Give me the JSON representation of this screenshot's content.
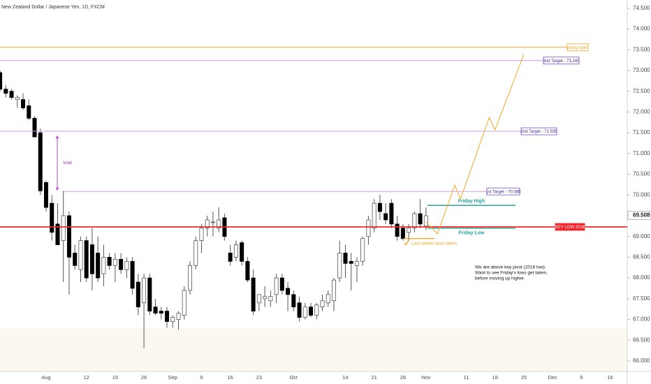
{
  "chart_data": {
    "type": "candlestick",
    "title": "New Zealand Dollar / Japanese Yen, 1D, FXCM",
    "categories": [
      null,
      null,
      null,
      null,
      null,
      null,
      null,
      null,
      "Aug",
      null,
      null,
      null,
      null,
      null,
      null,
      "12",
      null,
      null,
      null,
      null,
      "19",
      null,
      null,
      null,
      null,
      "26",
      null,
      null,
      null,
      null,
      "Sep",
      null,
      null,
      null,
      null,
      "9",
      null,
      null,
      null,
      null,
      "16",
      null,
      null,
      null,
      null,
      "23",
      null,
      null,
      null,
      null,
      null,
      "Oct",
      null,
      null,
      null,
      null,
      null,
      null,
      null,
      null,
      "14",
      null,
      null,
      null,
      null,
      "21",
      null,
      null,
      null,
      null,
      "28",
      null,
      null,
      null,
      "Nov",
      null,
      null,
      null,
      null,
      null,
      null,
      "11",
      null,
      null,
      null,
      null,
      "18",
      null,
      null,
      null,
      null,
      "25",
      null,
      null,
      null,
      null,
      "Dec",
      null,
      null,
      null,
      null,
      "9",
      null,
      null,
      null,
      null,
      "16",
      null,
      null
    ],
    "open": [
      72.95,
      72.55,
      72.5,
      72.3,
      72.3,
      72.15,
      71.85,
      71.5,
      70.3,
      69.8,
      69.3,
      68.9,
      69.5,
      68.6,
      68.2,
      68.9,
      68.8,
      68.6,
      68.1,
      68.5,
      68.3,
      68.45,
      68.2,
      68.4,
      67.9,
      67.4,
      68.0,
      67.3,
      67.2,
      67.2,
      66.95,
      67.0,
      67.1,
      67.7,
      68.3,
      68.9,
      69.2,
      69.35,
      69.2,
      69.45,
      68.6,
      68.5,
      68.85,
      68.4,
      68.0,
      67.4,
      67.5,
      67.45,
      67.6,
      68.0,
      67.75,
      67.6,
      67.4,
      67.05,
      67.3,
      67.1,
      67.3,
      67.4,
      67.45,
      68.0,
      68.6,
      68.4,
      68.3,
      68.4,
      69.0,
      69.2,
      69.8,
      69.55,
      69.8,
      69.3,
      69.2,
      69.1,
      69.2,
      69.55,
      69.25,
      null,
      null,
      null,
      null,
      null,
      null,
      null,
      null,
      null,
      null,
      null,
      null,
      null,
      null,
      null,
      null,
      null,
      null,
      null,
      null,
      null,
      null,
      null,
      null,
      null,
      null,
      null,
      null,
      null,
      null,
      null,
      null,
      null,
      null
    ],
    "high": [
      73.0,
      72.65,
      72.55,
      72.4,
      72.45,
      72.3,
      71.9,
      71.6,
      70.35,
      70.0,
      69.8,
      70.1,
      69.6,
      68.8,
      69.0,
      69.0,
      69.2,
      69.0,
      68.8,
      68.6,
      68.6,
      68.6,
      68.5,
      68.5,
      68.1,
      68.1,
      68.1,
      67.5,
      67.3,
      67.3,
      67.1,
      67.2,
      67.8,
      68.4,
      69.0,
      69.3,
      69.5,
      69.6,
      69.7,
      69.55,
      68.8,
      68.9,
      68.9,
      68.5,
      68.2,
      67.6,
      67.8,
      67.7,
      68.1,
      68.1,
      67.9,
      67.7,
      67.55,
      67.4,
      67.4,
      67.4,
      67.6,
      67.7,
      68.0,
      68.9,
      68.8,
      68.6,
      68.5,
      69.0,
      69.5,
      69.9,
      70.0,
      69.8,
      69.9,
      69.5,
      69.3,
      69.3,
      69.6,
      69.9,
      69.7,
      null,
      null,
      null,
      null,
      null,
      null,
      null,
      null,
      null,
      null,
      null,
      null,
      null,
      null,
      null,
      null,
      null,
      null,
      null,
      null,
      null,
      null,
      null,
      null,
      null,
      null,
      null,
      null,
      null,
      null,
      null,
      null,
      null,
      null
    ],
    "low": [
      72.5,
      72.35,
      72.3,
      72.1,
      72.05,
      71.8,
      71.4,
      70.0,
      69.6,
      68.9,
      68.8,
      67.9,
      67.6,
      68.2,
      67.9,
      67.9,
      67.7,
      67.9,
      67.8,
      68.2,
      67.9,
      68.1,
      68.0,
      67.6,
      67.1,
      66.3,
      67.1,
      67.1,
      67.0,
      66.8,
      66.8,
      66.75,
      67.0,
      67.6,
      68.2,
      68.6,
      69.0,
      69.0,
      69.1,
      68.9,
      68.3,
      68.4,
      68.3,
      67.9,
      67.1,
      67.2,
      67.3,
      67.3,
      67.4,
      67.6,
      67.2,
      67.2,
      66.95,
      67.0,
      67.05,
      67.0,
      67.2,
      67.3,
      67.2,
      67.9,
      68.0,
      67.7,
      67.9,
      68.3,
      68.8,
      69.1,
      69.4,
      69.3,
      69.2,
      68.9,
      68.9,
      68.9,
      69.1,
      69.2,
      69.15,
      null,
      null,
      null,
      null,
      null,
      null,
      null,
      null,
      null,
      null,
      null,
      null,
      null,
      null,
      null,
      null,
      null,
      null,
      null,
      null,
      null,
      null,
      null,
      null,
      null,
      null,
      null,
      null,
      null,
      null,
      null,
      null,
      null,
      null
    ],
    "close": [
      72.55,
      72.45,
      72.35,
      72.35,
      72.1,
      71.85,
      71.4,
      70.1,
      69.7,
      69.1,
      68.8,
      69.5,
      68.5,
      68.3,
      68.9,
      68.0,
      68.1,
      68.0,
      68.5,
      68.3,
      68.45,
      68.2,
      68.4,
      67.75,
      67.3,
      68.0,
      67.2,
      67.15,
      67.15,
      66.95,
      67.05,
      67.15,
      67.7,
      68.3,
      68.9,
      69.2,
      69.4,
      69.35,
      69.4,
      69.0,
      68.4,
      68.8,
      68.4,
      67.95,
      67.2,
      67.6,
      67.55,
      67.55,
      68.0,
      67.7,
      67.6,
      67.3,
      67.05,
      67.3,
      67.1,
      67.35,
      67.45,
      67.6,
      67.95,
      68.6,
      68.35,
      68.35,
      68.4,
      68.95,
      69.4,
      69.8,
      69.6,
      69.4,
      69.3,
      69.0,
      68.95,
      69.2,
      69.55,
      69.3,
      69.5,
      null,
      null,
      null,
      null,
      null,
      null,
      null,
      null,
      null,
      null,
      null,
      null,
      null,
      null,
      null,
      null,
      null,
      null,
      null,
      null,
      null,
      null,
      null,
      null,
      null,
      null,
      null,
      null,
      null,
      null,
      null,
      null,
      null,
      null
    ],
    "up_color": "#ffffff",
    "down_color": "#000000",
    "ylim": [
      65.78,
      74.7
    ],
    "yticks": [
      {
        "value": 66,
        "label": "66.000"
      },
      {
        "value": 66.5,
        "label": "66.500"
      },
      {
        "value": 67,
        "label": "67.000"
      },
      {
        "value": 67.5,
        "label": "67.500"
      },
      {
        "value": 68,
        "label": "68.000"
      },
      {
        "value": 68.5,
        "label": "68.500"
      },
      {
        "value": 69,
        "label": "69.000"
      },
      {
        "value": 69.5,
        "label": "69.500"
      },
      {
        "value": 70,
        "label": "70.000"
      },
      {
        "value": 70.5,
        "label": "70.500"
      },
      {
        "value": 71,
        "label": "71.000"
      },
      {
        "value": 71.5,
        "label": "71.500"
      },
      {
        "value": 72,
        "label": "72.000"
      },
      {
        "value": 72.5,
        "label": "72.500"
      },
      {
        "value": 73,
        "label": "73.000"
      },
      {
        "value": 73.5,
        "label": "73.500"
      },
      {
        "value": 74,
        "label": "74.000"
      },
      {
        "value": 74.5,
        "label": "74.500"
      }
    ],
    "last_price": 69.508,
    "levels": [
      {
        "label": "yearly open",
        "value": 73.56,
        "color": "#f5a623"
      },
      {
        "label": "3nd Target - 73.240",
        "value": 73.24,
        "color": "#d49be6"
      },
      {
        "label": "2nd Target - 71.535",
        "value": 71.535,
        "color": "#d49be6"
      },
      {
        "label": "1st Target - 70.085",
        "value": 70.085,
        "color": "#d49be6"
      },
      {
        "label": "KEY LOW 2016",
        "value": 69.23,
        "color": "#f2262a"
      },
      {
        "label": "Friday High",
        "value": 69.75,
        "color": "#26a69a"
      },
      {
        "label": "Friday Low",
        "value": 69.2,
        "color": "#26a69a"
      },
      {
        "label": "Last weeks lows taken.",
        "value": 68.95,
        "color": "#f5a623"
      }
    ],
    "projection": {
      "color": "#f5a623",
      "x": [
        74,
        76,
        79,
        80,
        85,
        86,
        91
      ],
      "values": [
        69.35,
        69.06,
        70.24,
        69.9,
        71.87,
        71.57,
        73.39
      ]
    },
    "void": {
      "label": "Void",
      "from": 71.42,
      "to": 70.12,
      "color": "#9c27b0"
    },
    "note": [
      "We are above key pivot (2016 low).",
      "Want to see Friday's lows get taken,",
      "before moving up higher."
    ]
  }
}
